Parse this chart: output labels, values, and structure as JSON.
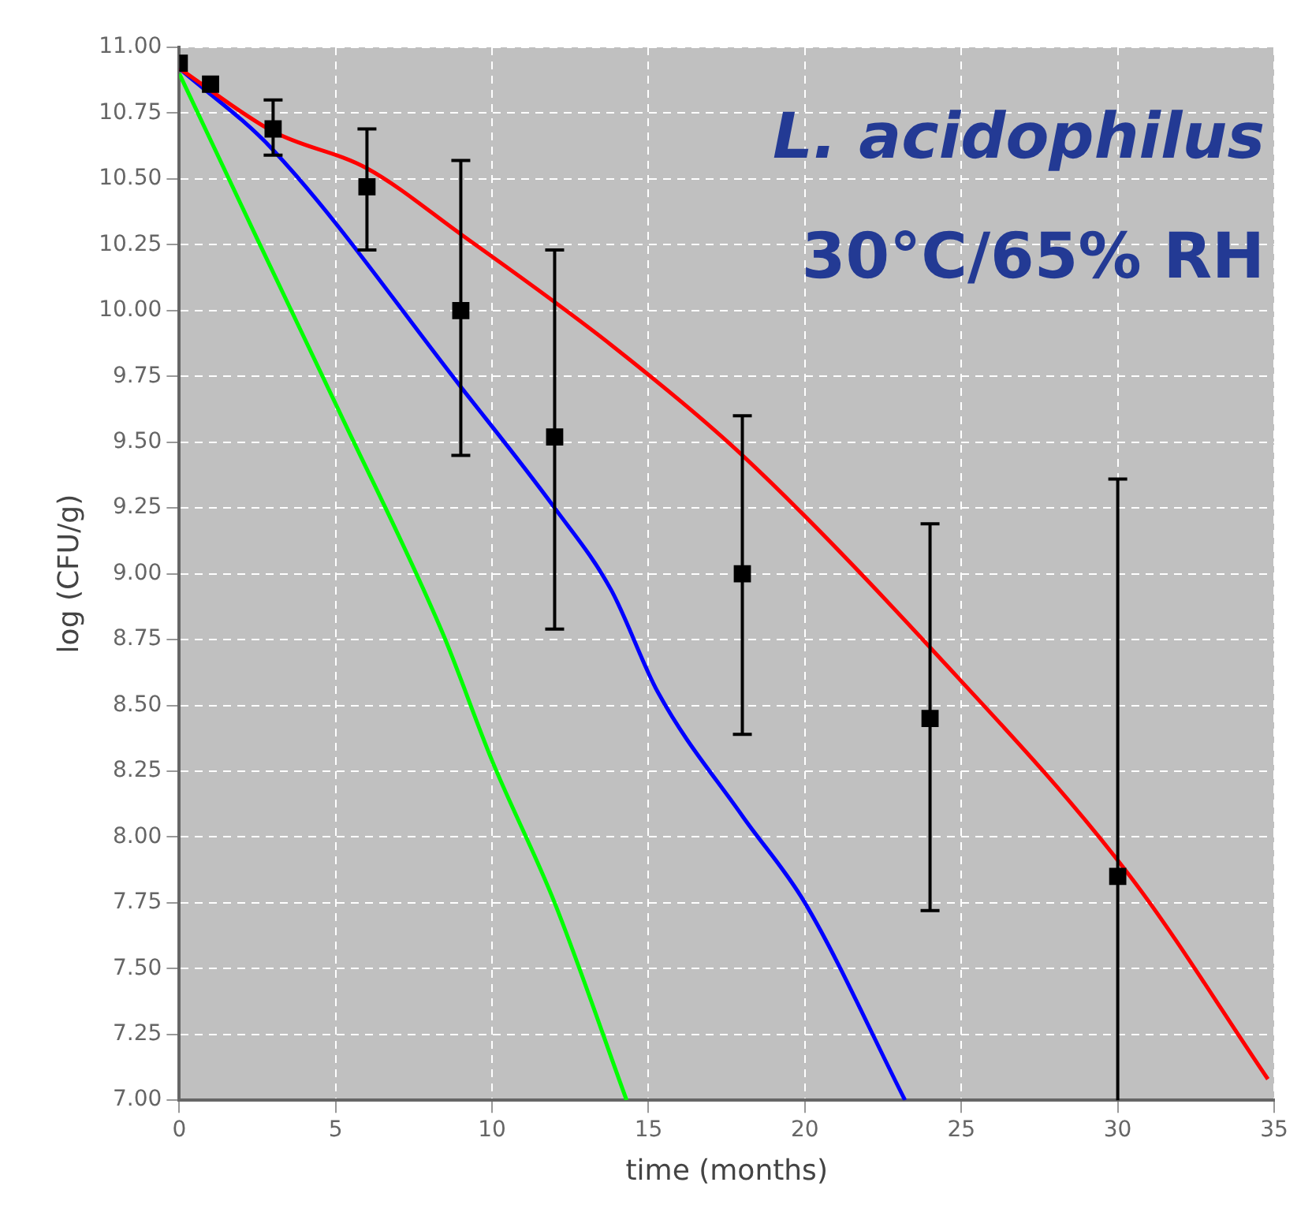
{
  "chart_data": {
    "type": "line",
    "xlabel": "time (months)",
    "ylabel": "log (CFU/g)",
    "annotations": [
      "L. acidophilus",
      "30°C/65% RH"
    ],
    "xlim": [
      0,
      35
    ],
    "xticks": [
      0,
      5,
      10,
      15,
      20,
      25,
      30,
      35
    ],
    "ylim": [
      7,
      11
    ],
    "yticks": [
      {
        "value": 7,
        "label": "7.00"
      },
      {
        "value": 7.25,
        "label": "7.25"
      },
      {
        "value": 7.5,
        "label": "7.50"
      },
      {
        "value": 7.75,
        "label": "7.75"
      },
      {
        "value": 8,
        "label": "8.00"
      },
      {
        "value": 8.25,
        "label": "8.25"
      },
      {
        "value": 8.5,
        "label": "8.50"
      },
      {
        "value": 8.75,
        "label": "8.75"
      },
      {
        "value": 9,
        "label": "9.00"
      },
      {
        "value": 9.25,
        "label": "9.25"
      },
      {
        "value": 9.5,
        "label": "9.50"
      },
      {
        "value": 9.75,
        "label": "9.75"
      },
      {
        "value": 10,
        "label": "10.00"
      },
      {
        "value": 10.25,
        "label": "10.25"
      },
      {
        "value": 10.5,
        "label": "10.50"
      },
      {
        "value": 10.75,
        "label": "10.75"
      },
      {
        "value": 11,
        "label": "11.00"
      }
    ],
    "grid": true,
    "legend": false,
    "series": [
      {
        "type": "line",
        "color": "#ff0000",
        "marker": "none",
        "x": [
          0,
          3,
          6,
          9,
          13.8,
          18,
          24,
          30.4,
          34.8
        ],
        "values": [
          10.92,
          10.68,
          10.54,
          10.29,
          9.87,
          9.45,
          8.72,
          7.85,
          7.08
        ]
      },
      {
        "type": "line",
        "color": "#0000ff",
        "marker": "none",
        "x": [
          0,
          3,
          9,
          12,
          13.8,
          15.3,
          18,
          20,
          23.2
        ],
        "values": [
          10.92,
          10.61,
          9.71,
          9.25,
          8.94,
          8.55,
          8.08,
          7.75,
          7.0
        ]
      },
      {
        "type": "line",
        "color": "#00ff00",
        "marker": "none",
        "x": [
          0,
          2.5,
          5.1,
          8.4,
          10,
          12,
          14.3
        ],
        "values": [
          10.9,
          10.27,
          9.62,
          8.78,
          8.29,
          7.75,
          7.0
        ]
      },
      {
        "type": "scatter",
        "color": "#000000",
        "marker": "square",
        "x": [
          0,
          1,
          3,
          6,
          9,
          12,
          18,
          24,
          30
        ],
        "values": [
          10.94,
          10.86,
          10.69,
          10.47,
          10.0,
          9.52,
          9.0,
          8.45,
          7.85
        ],
        "errors": [
          null,
          null,
          [
            10.59,
            10.8
          ],
          [
            10.23,
            10.69
          ],
          [
            9.45,
            10.57
          ],
          [
            8.79,
            10.23
          ],
          [
            8.39,
            9.6
          ],
          [
            7.72,
            9.19
          ],
          [
            7.0,
            9.36
          ]
        ]
      }
    ]
  }
}
